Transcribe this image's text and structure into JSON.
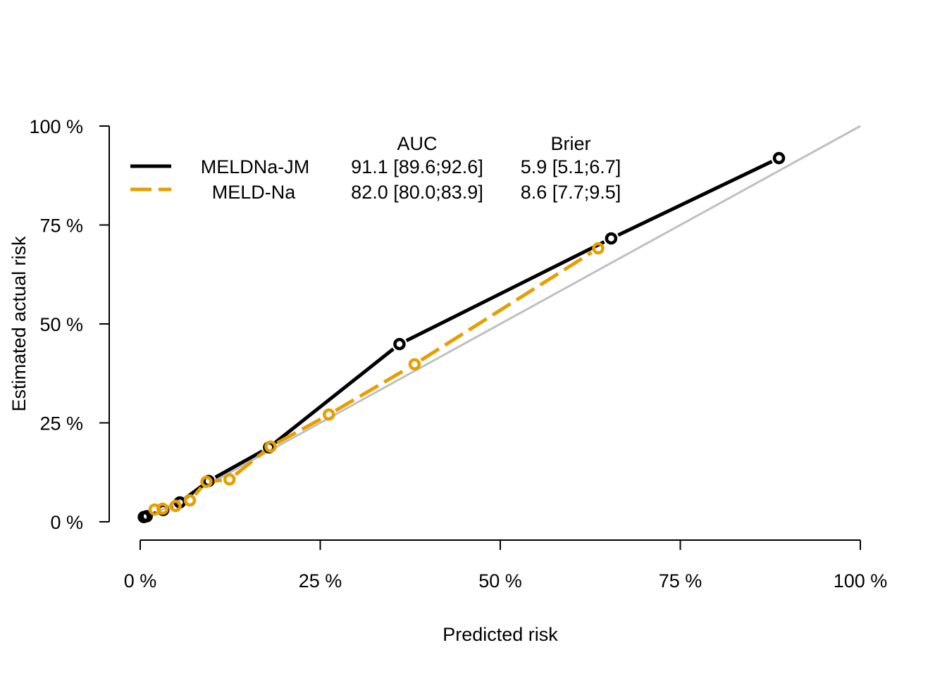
{
  "chart_data": {
    "type": "line",
    "title": "",
    "xlabel": "Predicted risk",
    "ylabel": "Estimated actual risk",
    "xlim": [
      0,
      100
    ],
    "ylim": [
      0,
      100
    ],
    "x_ticks": [
      "0 %",
      "25 %",
      "50 %",
      "75 %",
      "100 %"
    ],
    "y_ticks": [
      "0 %",
      "25 %",
      "50 %",
      "75 %",
      "100 %"
    ],
    "reference_line": {
      "x": [
        0,
        100
      ],
      "y": [
        0,
        100
      ],
      "color": "#c0c0c0"
    },
    "legend": {
      "position": "top-left",
      "headers": {
        "auc": "AUC",
        "brier": "Brier"
      },
      "entries": [
        {
          "name": "MELDNa-JM",
          "auc": "91.1 [89.6;92.6]",
          "brier": "5.9 [5.1;6.7]"
        },
        {
          "name": "MELD-Na",
          "auc": "82.0 [80.0;83.9]",
          "brier": "8.6 [7.7;9.5]"
        }
      ]
    },
    "series": [
      {
        "name": "MELDNa-JM",
        "color": "#000000",
        "x": [
          0.5,
          0.9,
          3.2,
          5.5,
          9.5,
          17.9,
          36.0,
          65.4,
          88.7
        ],
        "y": [
          1.2,
          1.4,
          3.0,
          4.9,
          10.3,
          18.8,
          44.9,
          71.6,
          91.9
        ]
      },
      {
        "name": "MELD-Na",
        "color": "#E69F00",
        "x": [
          2.0,
          3.1,
          4.9,
          6.9,
          9.2,
          12.4,
          18.1,
          26.2,
          38.1,
          63.6
        ],
        "y": [
          3.1,
          3.3,
          4.0,
          5.4,
          10.1,
          10.7,
          19.0,
          27.1,
          39.8,
          69.1
        ]
      }
    ]
  }
}
